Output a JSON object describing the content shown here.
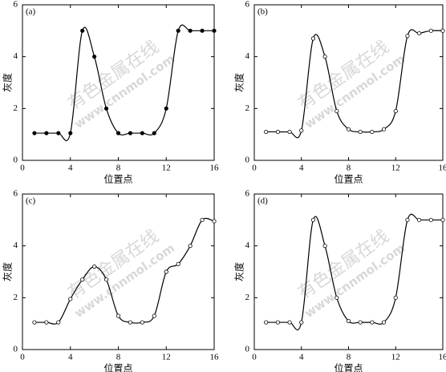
{
  "chart_data": [
    {
      "type": "line",
      "label": "(a)",
      "xlabel": "位置点",
      "ylabel": "灰度",
      "marker": "filled",
      "color": "#000000",
      "watermark": [
        "有色金属在线",
        "www.cnnmol.com"
      ],
      "x": [
        1,
        2,
        3,
        4,
        5,
        6,
        7,
        8,
        9,
        10,
        11,
        12,
        13,
        14,
        15,
        16
      ],
      "values": [
        1.05,
        1.05,
        1.05,
        1.05,
        5,
        4,
        2,
        1.05,
        1.05,
        1.05,
        1.05,
        2,
        5,
        5,
        5,
        5
      ],
      "xlim": [
        0,
        16
      ],
      "ylim": [
        0,
        6
      ],
      "xticks": [
        0,
        4,
        8,
        12,
        16
      ],
      "yticks": [
        0,
        2,
        4,
        6
      ]
    },
    {
      "type": "line",
      "label": "(b)",
      "xlabel": "位置点",
      "ylabel": "灰度",
      "marker": "open",
      "color": "#000000",
      "watermark": [
        "有色金属在线",
        "www.cnnmol.com"
      ],
      "x": [
        1,
        2,
        3,
        4,
        5,
        6,
        7,
        8,
        9,
        10,
        11,
        12,
        13,
        14,
        15,
        16
      ],
      "values": [
        1.1,
        1.1,
        1.1,
        1.15,
        4.7,
        4,
        1.9,
        1.2,
        1.1,
        1.1,
        1.2,
        1.9,
        4.8,
        4.9,
        5,
        5
      ],
      "xlim": [
        0,
        16
      ],
      "ylim": [
        0,
        6
      ],
      "xticks": [
        0,
        4,
        8,
        12,
        16
      ],
      "yticks": [
        0,
        2,
        4,
        6
      ]
    },
    {
      "type": "line",
      "label": "(c)",
      "xlabel": "位置点",
      "ylabel": "灰度",
      "marker": "open",
      "color": "#000000",
      "watermark": [
        "有色金属在线",
        "www.cnnmol.com"
      ],
      "x": [
        1,
        2,
        3,
        4,
        5,
        6,
        7,
        8,
        9,
        10,
        11,
        12,
        13,
        14,
        15,
        16
      ],
      "values": [
        1.05,
        1.05,
        1.05,
        1.95,
        2.7,
        3.2,
        2.7,
        1.3,
        1.05,
        1.05,
        1.3,
        3,
        3.3,
        4,
        5,
        4.95
      ],
      "xlim": [
        0,
        16
      ],
      "ylim": [
        0,
        6
      ],
      "xticks": [
        0,
        4,
        8,
        12,
        16
      ],
      "yticks": [
        0,
        2,
        4,
        6
      ]
    },
    {
      "type": "line",
      "label": "(d)",
      "xlabel": "位置点",
      "ylabel": "灰度",
      "marker": "open",
      "color": "#000000",
      "watermark": [
        "有色金属在线",
        "www.cnnmol.com"
      ],
      "x": [
        1,
        2,
        3,
        4,
        5,
        6,
        7,
        8,
        9,
        10,
        11,
        12,
        13,
        14,
        15,
        16
      ],
      "values": [
        1.05,
        1.05,
        1.05,
        1.05,
        5,
        4,
        2,
        1.1,
        1.05,
        1.05,
        1.05,
        2,
        5,
        5,
        5,
        5
      ],
      "xlim": [
        0,
        16
      ],
      "ylim": [
        0,
        6
      ],
      "xticks": [
        0,
        4,
        8,
        12,
        16
      ],
      "yticks": [
        0,
        2,
        4,
        6
      ]
    }
  ]
}
